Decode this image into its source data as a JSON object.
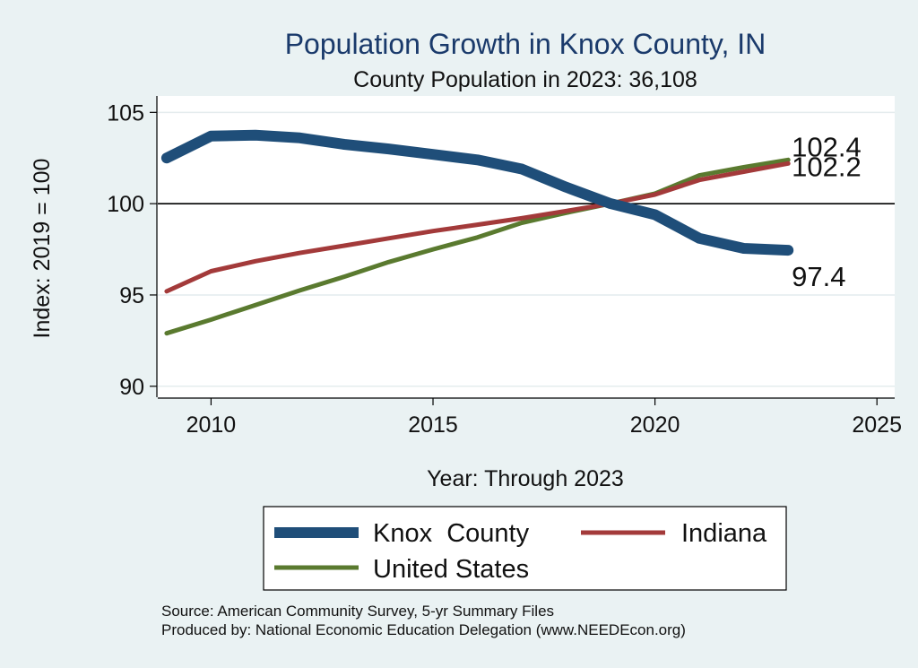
{
  "chart_data": {
    "type": "line",
    "title": "Population Growth in Knox County, IN",
    "subtitle": "County Population in 2023: 36,108",
    "xlabel": "Year: Through 2023",
    "ylabel": "Index: 2019 = 100",
    "xlim": [
      2008.8,
      2025.4
    ],
    "ylim": [
      89.4,
      105.9
    ],
    "xticks": [
      2010,
      2015,
      2020,
      2025
    ],
    "yticks": [
      90,
      95,
      100,
      105
    ],
    "grid": true,
    "reference_line": 100,
    "x": [
      2009,
      2010,
      2011,
      2012,
      2013,
      2014,
      2015,
      2016,
      2017,
      2018,
      2019,
      2020,
      2021,
      2022,
      2023
    ],
    "series": [
      {
        "name": "Knox  County",
        "color": "#1f4e79",
        "values": [
          102.5,
          103.7,
          103.75,
          103.6,
          103.25,
          103.0,
          102.7,
          102.4,
          101.9,
          100.9,
          100.0,
          99.4,
          98.1,
          97.55,
          97.45
        ],
        "end_label": "97.4"
      },
      {
        "name": "Indiana",
        "color": "#a33a3a",
        "values": [
          95.2,
          96.3,
          96.85,
          97.3,
          97.7,
          98.1,
          98.5,
          98.85,
          99.2,
          99.6,
          100.0,
          100.5,
          101.3,
          101.75,
          102.2
        ],
        "end_label": "102.2"
      },
      {
        "name": "United States",
        "color": "#5a7a2f",
        "values": [
          92.9,
          93.65,
          94.45,
          95.25,
          96.0,
          96.8,
          97.5,
          98.15,
          98.95,
          99.5,
          100.0,
          100.55,
          101.55,
          102.0,
          102.4
        ],
        "end_label": "102.4"
      }
    ],
    "legend": {
      "placement": "bottom",
      "items": [
        "Knox  County",
        "Indiana",
        "United States"
      ]
    },
    "notes": [
      "Source: American Community Survey, 5-yr Summary Files",
      "Produced by: National Economic Education Delegation (www.NEEDEcon.org)"
    ]
  }
}
